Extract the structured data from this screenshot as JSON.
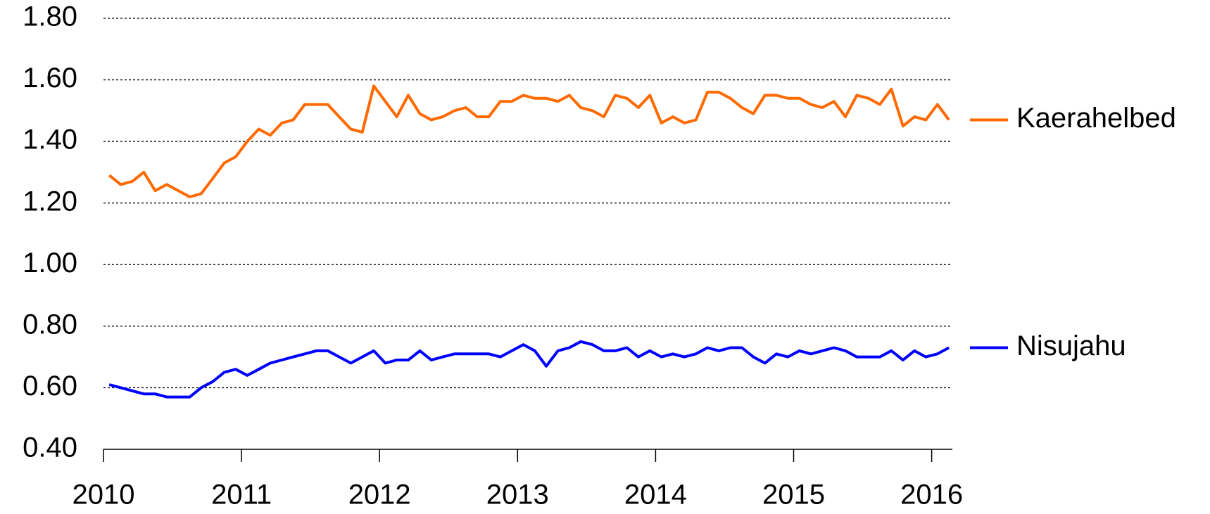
{
  "chart_data": {
    "type": "line",
    "x": [
      2010.042,
      2010.125,
      2010.208,
      2010.292,
      2010.375,
      2010.458,
      2010.542,
      2010.625,
      2010.708,
      2010.792,
      2010.875,
      2010.958,
      2011.042,
      2011.125,
      2011.208,
      2011.292,
      2011.375,
      2011.458,
      2011.542,
      2011.625,
      2011.708,
      2011.792,
      2011.875,
      2011.958,
      2012.042,
      2012.125,
      2012.208,
      2012.292,
      2012.375,
      2012.458,
      2012.542,
      2012.625,
      2012.708,
      2012.792,
      2012.875,
      2012.958,
      2013.042,
      2013.125,
      2013.208,
      2013.292,
      2013.375,
      2013.458,
      2013.542,
      2013.625,
      2013.708,
      2013.792,
      2013.875,
      2013.958,
      2014.042,
      2014.125,
      2014.208,
      2014.292,
      2014.375,
      2014.458,
      2014.542,
      2014.625,
      2014.708,
      2014.792,
      2014.875,
      2014.958,
      2015.042,
      2015.125,
      2015.208,
      2015.292,
      2015.375,
      2015.458,
      2015.542,
      2015.625,
      2015.708,
      2015.792,
      2015.875,
      2015.958,
      2016.042,
      2016.125
    ],
    "series": [
      {
        "name": "Kaerahelbed",
        "color": "#ff6a00",
        "values": [
          1.29,
          1.26,
          1.27,
          1.3,
          1.24,
          1.26,
          1.24,
          1.22,
          1.23,
          1.28,
          1.33,
          1.35,
          1.4,
          1.44,
          1.42,
          1.46,
          1.47,
          1.52,
          1.52,
          1.52,
          1.48,
          1.44,
          1.43,
          1.58,
          1.53,
          1.48,
          1.55,
          1.49,
          1.47,
          1.48,
          1.5,
          1.51,
          1.48,
          1.48,
          1.53,
          1.53,
          1.55,
          1.54,
          1.54,
          1.53,
          1.55,
          1.51,
          1.5,
          1.48,
          1.55,
          1.54,
          1.51,
          1.55,
          1.46,
          1.48,
          1.46,
          1.47,
          1.56,
          1.56,
          1.54,
          1.51,
          1.49,
          1.55,
          1.55,
          1.54,
          1.54,
          1.52,
          1.51,
          1.53,
          1.48,
          1.55,
          1.54,
          1.52,
          1.57,
          1.45,
          1.48,
          1.47,
          1.52,
          1.47
        ]
      },
      {
        "name": "Nisujahu",
        "color": "#0000ff",
        "values": [
          0.61,
          0.6,
          0.59,
          0.58,
          0.58,
          0.57,
          0.57,
          0.57,
          0.6,
          0.62,
          0.65,
          0.66,
          0.64,
          0.66,
          0.68,
          0.69,
          0.7,
          0.71,
          0.72,
          0.72,
          0.7,
          0.68,
          0.7,
          0.72,
          0.68,
          0.69,
          0.69,
          0.72,
          0.69,
          0.7,
          0.71,
          0.71,
          0.71,
          0.71,
          0.7,
          0.72,
          0.74,
          0.72,
          0.67,
          0.72,
          0.73,
          0.75,
          0.74,
          0.72,
          0.72,
          0.73,
          0.7,
          0.72,
          0.7,
          0.71,
          0.7,
          0.71,
          0.73,
          0.72,
          0.73,
          0.73,
          0.7,
          0.68,
          0.71,
          0.7,
          0.72,
          0.71,
          0.72,
          0.73,
          0.72,
          0.7,
          0.7,
          0.7,
          0.72,
          0.69,
          0.72,
          0.7,
          0.71,
          0.73
        ]
      }
    ],
    "xlim": [
      2010,
      2016.15
    ],
    "xticks": [
      2010,
      2011,
      2012,
      2013,
      2014,
      2015,
      2016
    ],
    "ylim": [
      0.4,
      1.8
    ],
    "yticks": [
      {
        "value": 0.4,
        "label": "0.40"
      },
      {
        "value": 0.6,
        "label": "0.60"
      },
      {
        "value": 0.8,
        "label": "0.80"
      },
      {
        "value": 1.0,
        "label": "1.00"
      },
      {
        "value": 1.2,
        "label": "1.20"
      },
      {
        "value": 1.4,
        "label": "1.40"
      },
      {
        "value": 1.6,
        "label": "1.60"
      },
      {
        "value": 1.8,
        "label": "1.80"
      }
    ],
    "grid": true,
    "legend": "right"
  }
}
